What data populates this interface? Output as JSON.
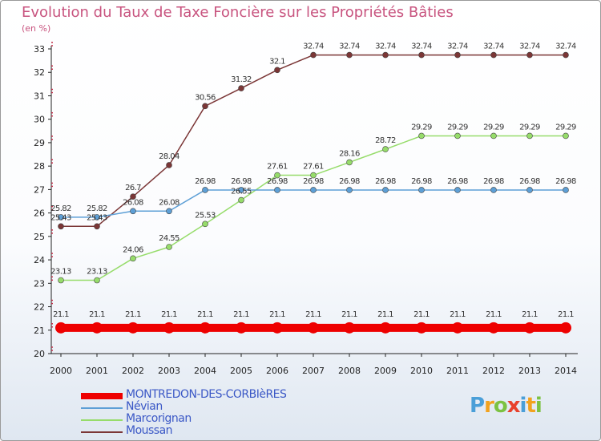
{
  "title": "Evolution du Taux de Taxe Foncière sur les Propriétés Bâties",
  "unit_label": "(en %)",
  "logo": {
    "text": "Proxiti",
    "letters": [
      {
        "ch": "P",
        "color": "#4a9fd8"
      },
      {
        "ch": "r",
        "color": "#f2a21d"
      },
      {
        "ch": "o",
        "color": "#7cc242"
      },
      {
        "ch": "x",
        "color": "#e8412c"
      },
      {
        "ch": "i",
        "color": "#4a9fd8"
      },
      {
        "ch": "t",
        "color": "#f2a21d"
      },
      {
        "ch": "i",
        "color": "#7cc242"
      }
    ]
  },
  "chart_data": {
    "type": "line",
    "x": [
      "2000",
      "2001",
      "2002",
      "2003",
      "2004",
      "2005",
      "2006",
      "2007",
      "2008",
      "2009",
      "2010",
      "2011",
      "2012",
      "2013",
      "2014"
    ],
    "ylim": [
      20,
      33
    ],
    "yticks": [
      20,
      21,
      22,
      23,
      24,
      25,
      26,
      27,
      28,
      29,
      30,
      31,
      32,
      33
    ],
    "grid": false,
    "legend_position": "bottom-left",
    "series": [
      {
        "name": "MONTREDON-DES-CORBIèRES",
        "color": "#ee0000",
        "width": 10,
        "marker": 7,
        "labelPos": "above",
        "values": [
          21.1,
          21.1,
          21.1,
          21.1,
          21.1,
          21.1,
          21.1,
          21.1,
          21.1,
          21.1,
          21.1,
          21.1,
          21.1,
          21.1,
          21.1
        ],
        "labels": [
          "21.1",
          "21.1",
          "21.1",
          "21.1",
          "21.1",
          "21.1",
          "21.1",
          "21.1",
          "21.1",
          "21.1",
          "21.1",
          "21.1",
          "21.1",
          "21.1",
          "21.1"
        ]
      },
      {
        "name": "Névian",
        "color": "#5d9fd6",
        "width": 1.5,
        "marker": 3.5,
        "labelPos": "above",
        "values": [
          25.82,
          25.82,
          26.08,
          26.08,
          26.98,
          26.98,
          26.98,
          26.98,
          26.98,
          26.98,
          26.98,
          26.98,
          26.98,
          26.98,
          26.98
        ],
        "labels": [
          "25.82",
          "25.82",
          "26.08",
          "26.08",
          "26.98",
          "26.98",
          "26.98",
          "26.98",
          "26.98",
          "26.98",
          "26.98",
          "26.98",
          "26.98",
          "26.98",
          "26.98"
        ]
      },
      {
        "name": "Marcorignan",
        "color": "#96dc6a",
        "width": 1.5,
        "marker": 3.5,
        "labelPos": "above",
        "values": [
          23.13,
          23.13,
          24.06,
          24.55,
          25.53,
          26.55,
          27.61,
          27.61,
          28.16,
          28.72,
          29.29,
          29.29,
          29.29,
          29.29,
          29.29
        ],
        "labels": [
          "23.13",
          "23.13",
          "24.06",
          "24.55",
          "25.53",
          "26.55",
          "27.61",
          "27.61",
          "28.16",
          "28.72",
          "29.29",
          "29.29",
          "29.29",
          "29.29",
          "29.29"
        ]
      },
      {
        "name": "Moussan",
        "color": "#7b3636",
        "width": 1.5,
        "marker": 3.5,
        "labelPos": "above",
        "values": [
          25.43,
          25.43,
          26.7,
          28.04,
          30.56,
          31.32,
          32.1,
          32.74,
          32.74,
          32.74,
          32.74,
          32.74,
          32.74,
          32.74,
          32.74
        ],
        "labels": [
          "25.43",
          "25.43",
          "26.7",
          "28.04",
          "30.56",
          "31.32",
          "32.1",
          "32.74",
          "32.74",
          "32.74",
          "32.74",
          "32.74",
          "32.74",
          "32.74",
          "32.74"
        ]
      }
    ]
  }
}
